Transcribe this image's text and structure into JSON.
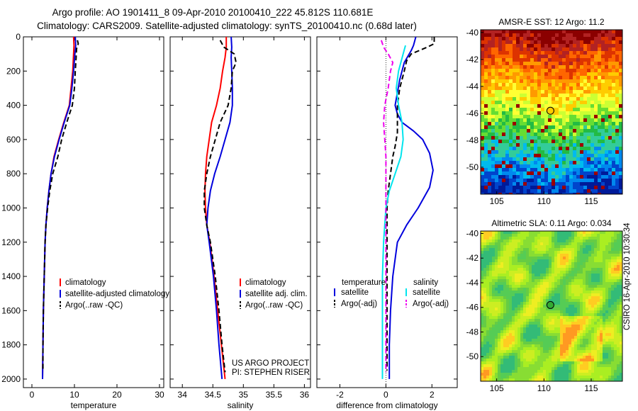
{
  "title_line1": "Argo profile: AO 1901411_8 09-Apr-2010 20100410_222 45.812S 110.681E",
  "title_line2": "Climatology: CARS2009. Satellite-adjusted climatology: synTS_20100410.nc (0.68d later)",
  "side_label": "CSIRO 16-Apr-2010 10:30:34",
  "colors": {
    "climatology": "#ff0000",
    "satellite": "#0000dd",
    "argo": "#000000",
    "sat_salinity": "#00e5ee",
    "argo_adj_salinity": "#ee00ee"
  },
  "chart_data": [
    {
      "type": "line",
      "xlabel": "temperature",
      "xlim": [
        -2,
        31
      ],
      "ylim": [
        2050,
        0
      ],
      "xticks": [
        0,
        10,
        20,
        30
      ],
      "yticks": [
        0,
        200,
        400,
        600,
        800,
        1000,
        1200,
        1400,
        1600,
        1800,
        2000
      ],
      "legend": [
        "climatology",
        "satellite-adjusted climatology",
        "Argo(..raw -QC)"
      ],
      "series": [
        {
          "name": "climatology",
          "color": "#ff0000",
          "style": "solid",
          "points": [
            [
              9.8,
              0
            ],
            [
              9.9,
              50
            ],
            [
              9.8,
              100
            ],
            [
              9.6,
              200
            ],
            [
              9.2,
              300
            ],
            [
              8.8,
              400
            ],
            [
              7.5,
              500
            ],
            [
              6.3,
              600
            ],
            [
              5.2,
              700
            ],
            [
              4.5,
              800
            ],
            [
              4.0,
              900
            ],
            [
              3.6,
              1000
            ],
            [
              3.3,
              1100
            ],
            [
              3.1,
              1200
            ],
            [
              2.9,
              1400
            ],
            [
              2.7,
              1600
            ],
            [
              2.6,
              1800
            ],
            [
              2.5,
              2000
            ]
          ]
        },
        {
          "name": "satellite-adjusted climatology",
          "color": "#0000dd",
          "style": "solid",
          "points": [
            [
              10.2,
              0
            ],
            [
              10.3,
              50
            ],
            [
              10.1,
              100
            ],
            [
              9.8,
              200
            ],
            [
              9.4,
              300
            ],
            [
              8.9,
              400
            ],
            [
              7.6,
              500
            ],
            [
              6.4,
              600
            ],
            [
              5.3,
              700
            ],
            [
              4.5,
              800
            ],
            [
              4.0,
              900
            ],
            [
              3.6,
              1000
            ],
            [
              3.3,
              1100
            ],
            [
              3.1,
              1200
            ],
            [
              2.9,
              1400
            ],
            [
              2.7,
              1600
            ],
            [
              2.6,
              1800
            ],
            [
              2.5,
              2000
            ]
          ]
        },
        {
          "name": "Argo(..raw -QC)",
          "color": "#000000",
          "style": "dashed",
          "points": [
            [
              10.7,
              20
            ],
            [
              10.9,
              40
            ],
            [
              10.5,
              70
            ],
            [
              10.4,
              120
            ],
            [
              10.2,
              200
            ],
            [
              10.0,
              300
            ],
            [
              9.5,
              400
            ],
            [
              8.2,
              500
            ],
            [
              7.0,
              600
            ],
            [
              6.1,
              700
            ],
            [
              4.9,
              800
            ],
            [
              4.2,
              900
            ],
            [
              3.7,
              1000
            ],
            [
              3.3,
              1100
            ],
            [
              3.1,
              1200
            ],
            [
              2.9,
              1400
            ],
            [
              2.7,
              1600
            ],
            [
              2.6,
              1800
            ],
            [
              2.6,
              1950
            ]
          ]
        }
      ]
    },
    {
      "type": "line",
      "xlabel": "salinity",
      "xlim": [
        33.8,
        36.1
      ],
      "ylim": [
        2050,
        0
      ],
      "xticks": [
        34,
        34.5,
        35,
        35.5,
        36
      ],
      "legend": [
        "climatology",
        "satellite adj. clim.",
        "Argo(..raw -QC)"
      ],
      "annotation": [
        "US ARGO PROJECT",
        "PI: STEPHEN RISER"
      ],
      "series": [
        {
          "name": "climatology",
          "color": "#ff0000",
          "style": "solid",
          "points": [
            [
              34.72,
              0
            ],
            [
              34.72,
              60
            ],
            [
              34.7,
              120
            ],
            [
              34.66,
              200
            ],
            [
              34.62,
              300
            ],
            [
              34.56,
              400
            ],
            [
              34.48,
              500
            ],
            [
              34.44,
              600
            ],
            [
              34.4,
              700
            ],
            [
              34.38,
              800
            ],
            [
              34.37,
              900
            ],
            [
              34.38,
              1000
            ],
            [
              34.4,
              1100
            ],
            [
              34.45,
              1200
            ],
            [
              34.52,
              1400
            ],
            [
              34.58,
              1600
            ],
            [
              34.64,
              1800
            ],
            [
              34.7,
              2000
            ]
          ]
        },
        {
          "name": "satellite adj. clim.",
          "color": "#0000dd",
          "style": "solid",
          "points": [
            [
              34.8,
              0
            ],
            [
              34.81,
              60
            ],
            [
              34.8,
              120
            ],
            [
              34.81,
              200
            ],
            [
              34.82,
              300
            ],
            [
              34.82,
              400
            ],
            [
              34.78,
              500
            ],
            [
              34.7,
              600
            ],
            [
              34.62,
              700
            ],
            [
              34.53,
              800
            ],
            [
              34.46,
              900
            ],
            [
              34.42,
              1000
            ],
            [
              34.4,
              1100
            ],
            [
              34.44,
              1200
            ],
            [
              34.51,
              1400
            ],
            [
              34.56,
              1600
            ],
            [
              34.6,
              1800
            ],
            [
              34.65,
              2000
            ]
          ]
        },
        {
          "name": "Argo(..raw -QC)",
          "color": "#000000",
          "style": "dashed",
          "points": [
            [
              34.62,
              20
            ],
            [
              34.68,
              60
            ],
            [
              34.85,
              100
            ],
            [
              34.88,
              150
            ],
            [
              34.82,
              200
            ],
            [
              34.8,
              300
            ],
            [
              34.75,
              400
            ],
            [
              34.62,
              500
            ],
            [
              34.54,
              600
            ],
            [
              34.46,
              700
            ],
            [
              34.4,
              800
            ],
            [
              34.36,
              900
            ],
            [
              34.36,
              1000
            ],
            [
              34.4,
              1100
            ],
            [
              34.46,
              1200
            ],
            [
              34.54,
              1400
            ],
            [
              34.6,
              1600
            ],
            [
              34.65,
              1800
            ],
            [
              34.7,
              1960
            ]
          ]
        }
      ]
    },
    {
      "type": "line",
      "xlabel": "difference from climatology",
      "xlim": [
        -3,
        3.1
      ],
      "ylim": [
        2050,
        0
      ],
      "xticks": [
        -2,
        0,
        2
      ],
      "legend_groups": [
        {
          "heading": "temperature",
          "items": [
            "satellite",
            "Argo(-adj)"
          ]
        },
        {
          "heading": "salinity",
          "items": [
            "satellite",
            "Argo(-adj)"
          ]
        }
      ],
      "series": [
        {
          "name": "temperature satellite",
          "color": "#0000dd",
          "style": "solid",
          "points": [
            [
              1.3,
              0
            ],
            [
              1.2,
              50
            ],
            [
              1.1,
              80
            ],
            [
              0.8,
              150
            ],
            [
              0.6,
              250
            ],
            [
              0.4,
              400
            ],
            [
              0.5,
              450
            ],
            [
              0.7,
              500
            ],
            [
              1.2,
              550
            ],
            [
              1.6,
              600
            ],
            [
              1.9,
              680
            ],
            [
              2.05,
              780
            ],
            [
              1.9,
              880
            ],
            [
              1.4,
              1000
            ],
            [
              0.9,
              1100
            ],
            [
              0.5,
              1200
            ],
            [
              0.3,
              1400
            ],
            [
              0.2,
              1600
            ],
            [
              0.15,
              1800
            ],
            [
              0.15,
              2000
            ]
          ]
        },
        {
          "name": "temperature Argo(-adj)",
          "color": "#000000",
          "style": "dashed",
          "points": [
            [
              2.1,
              0
            ],
            [
              2.1,
              40
            ],
            [
              1.8,
              60
            ],
            [
              1.1,
              100
            ],
            [
              0.9,
              140
            ],
            [
              0.8,
              200
            ],
            [
              0.6,
              300
            ],
            [
              0.5,
              400
            ],
            [
              0.5,
              500
            ],
            [
              0.5,
              560
            ],
            [
              0.4,
              640
            ],
            [
              0.3,
              700
            ],
            [
              0.2,
              800
            ],
            [
              0.1,
              900
            ],
            [
              0.05,
              1000
            ],
            [
              0.05,
              1200
            ],
            [
              0.05,
              1400
            ],
            [
              0.05,
              1600
            ],
            [
              0.05,
              1800
            ],
            [
              0.05,
              1950
            ]
          ]
        },
        {
          "name": "salinity satellite",
          "color": "#00e5ee",
          "style": "solid",
          "points": [
            [
              0.85,
              50
            ],
            [
              0.75,
              100
            ],
            [
              0.55,
              200
            ],
            [
              0.45,
              300
            ],
            [
              0.55,
              400
            ],
            [
              0.7,
              500
            ],
            [
              0.75,
              600
            ],
            [
              0.65,
              700
            ],
            [
              0.4,
              800
            ],
            [
              0.15,
              900
            ],
            [
              0.0,
              1000
            ],
            [
              -0.1,
              1200
            ],
            [
              -0.15,
              1400
            ],
            [
              -0.15,
              1600
            ],
            [
              -0.15,
              1800
            ],
            [
              -0.15,
              2000
            ]
          ]
        },
        {
          "name": "salinity Argo(-adj)",
          "color": "#ee00ee",
          "style": "dashed",
          "points": [
            [
              -0.2,
              20
            ],
            [
              -0.1,
              60
            ],
            [
              0.1,
              100
            ],
            [
              0.3,
              150
            ],
            [
              0.2,
              200
            ],
            [
              0.15,
              250
            ],
            [
              0.1,
              300
            ],
            [
              -0.05,
              400
            ],
            [
              -0.1,
              500
            ],
            [
              -0.05,
              600
            ],
            [
              0.0,
              700
            ],
            [
              0.0,
              800
            ],
            [
              0.0,
              1000
            ],
            [
              0.0,
              1200
            ],
            [
              0.0,
              1400
            ],
            [
              0.0,
              1600
            ],
            [
              0.0,
              1800
            ],
            [
              0.0,
              1960
            ]
          ]
        }
      ]
    },
    {
      "type": "heatmap",
      "title": "AMSR-E SST: 12 Argo: 11.2",
      "xticks": [
        105,
        110,
        115
      ],
      "yticks": [
        -40,
        -42,
        -44,
        -46,
        -48,
        -50
      ],
      "xlim": [
        103.3,
        118.3
      ],
      "ylim": [
        -52,
        -39.8
      ],
      "marker": {
        "lon": 110.68,
        "lat": -45.81,
        "color": "#ffcc00"
      }
    },
    {
      "type": "heatmap",
      "title": "Altimetric SLA: 0.11 Argo: 0.034",
      "xticks": [
        105,
        110,
        115
      ],
      "yticks": [
        -40,
        -42,
        -44,
        -46,
        -48,
        -50
      ],
      "xlim": [
        103.3,
        118.3
      ],
      "ylim": [
        -52,
        -39.8
      ],
      "marker": {
        "lon": 110.68,
        "lat": -45.81,
        "color": "#33aa33"
      }
    }
  ]
}
